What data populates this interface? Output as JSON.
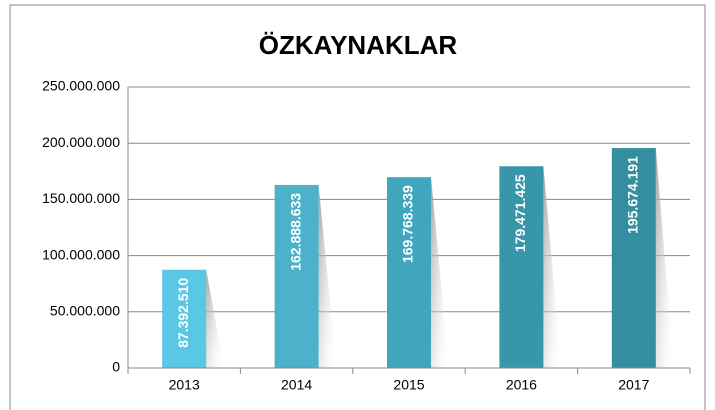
{
  "chart_data": {
    "type": "bar",
    "title": "ÖZKAYNAKLAR",
    "categories": [
      "2013",
      "2014",
      "2015",
      "2016",
      "2017"
    ],
    "values": [
      87392510,
      162888633,
      169768339,
      179471425,
      195674191
    ],
    "value_labels": [
      "87.392.510",
      "162.888.633",
      "169.768.339",
      "179.471.425",
      "195.674.191"
    ],
    "colors": [
      "#5ac7e4",
      "#4cb2ca",
      "#40a6bd",
      "#3796a9",
      "#338e9f"
    ],
    "ylim": [
      0,
      250000000
    ],
    "yticks": [
      0,
      {
        "value": 50000000,
        "label": "50.000.000"
      },
      {
        "value": 100000000,
        "label": "100.000.000"
      },
      {
        "value": 150000000,
        "label": "150.000.000"
      },
      {
        "value": 200000000,
        "label": "200.000.000"
      },
      {
        "value": 250000000,
        "label": "250.000.000"
      }
    ],
    "grid": true
  }
}
